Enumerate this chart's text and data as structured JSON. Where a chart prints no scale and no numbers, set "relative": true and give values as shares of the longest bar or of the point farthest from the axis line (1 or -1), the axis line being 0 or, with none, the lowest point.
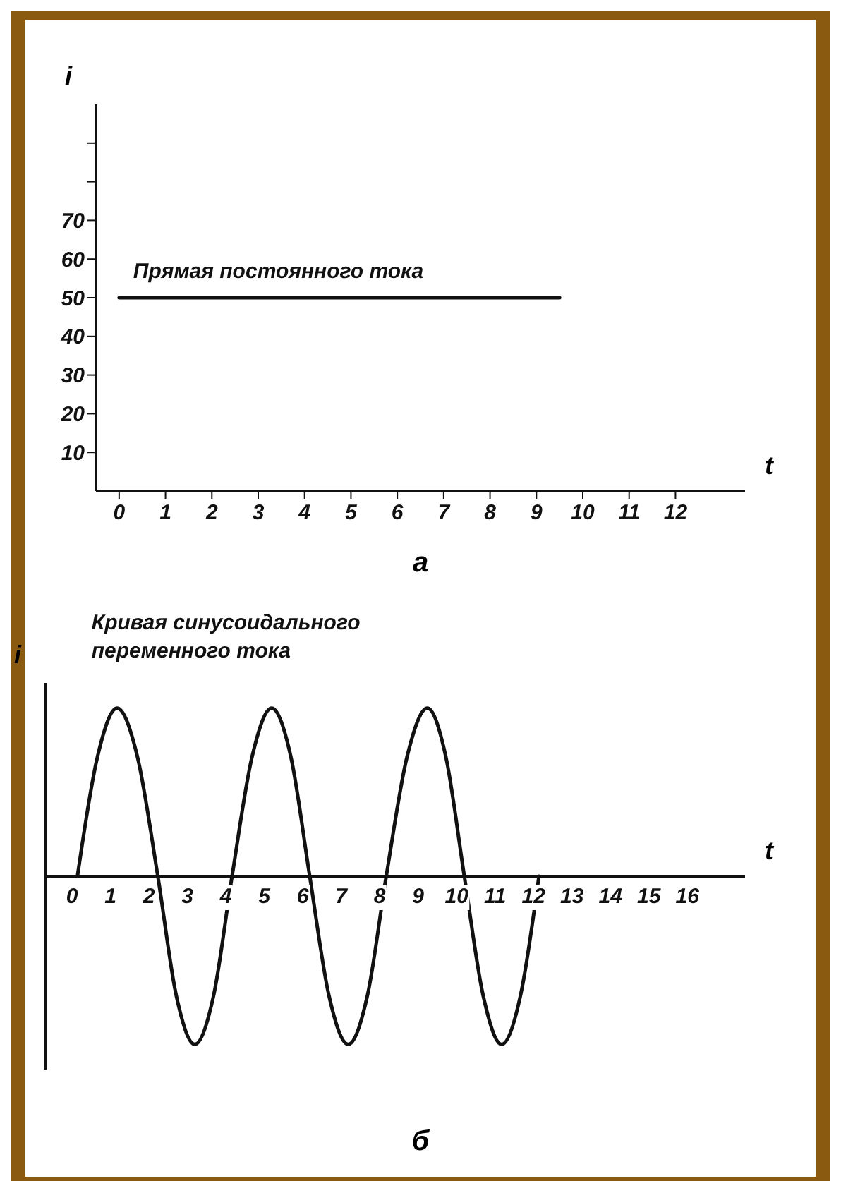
{
  "chart_data": [
    {
      "type": "line",
      "xlabel": "t",
      "ylabel": "i",
      "xlim": [
        -0.5,
        13.5
      ],
      "xticks": [
        0,
        1,
        2,
        3,
        4,
        5,
        6,
        7,
        8,
        9,
        10,
        11,
        12
      ],
      "ylim": [
        0,
        100
      ],
      "yticks": [
        10,
        20,
        30,
        40,
        50,
        60,
        70,
        {
          "value": 80,
          "label": null
        },
        {
          "value": 90,
          "label": null
        }
      ],
      "marker": "none",
      "line_style": "solid",
      "series": [
        {
          "name": "Прямая постоянного тока",
          "color": "#111111",
          "x": [
            0,
            9.5
          ],
          "values": [
            50,
            50
          ]
        }
      ],
      "annotations": [
        "а"
      ]
    },
    {
      "type": "line",
      "xlabel": "t",
      "ylabel": "i",
      "relative": true,
      "xlim": [
        -0.7,
        17.5
      ],
      "xticks": [
        0,
        1,
        2,
        3,
        4,
        5,
        6,
        7,
        8,
        9,
        10,
        11,
        12,
        13,
        14,
        15,
        16
      ],
      "marker": "none",
      "line_style": "solid",
      "series": [
        {
          "name": "Кривая синусоидального переменного тока",
          "color": "#111111",
          "x": [
            0.14,
            0.66,
            1.17,
            1.7,
            2.23,
            2.71,
            3.19,
            3.68,
            4.16,
            4.68,
            5.19,
            5.69,
            6.18,
            6.68,
            7.18,
            7.68,
            8.17,
            8.71,
            9.24,
            9.72,
            10.2,
            10.69,
            11.17,
            11.66,
            12.14
          ],
          "values": [
            0,
            0.71,
            1,
            0.71,
            0,
            -0.71,
            -1,
            -0.71,
            0,
            0.71,
            1,
            0.71,
            0,
            -0.71,
            -1,
            -0.71,
            0,
            0.71,
            1,
            0.71,
            0,
            -0.71,
            -1,
            -0.71,
            0
          ]
        }
      ],
      "annotations": [
        "б"
      ]
    }
  ]
}
